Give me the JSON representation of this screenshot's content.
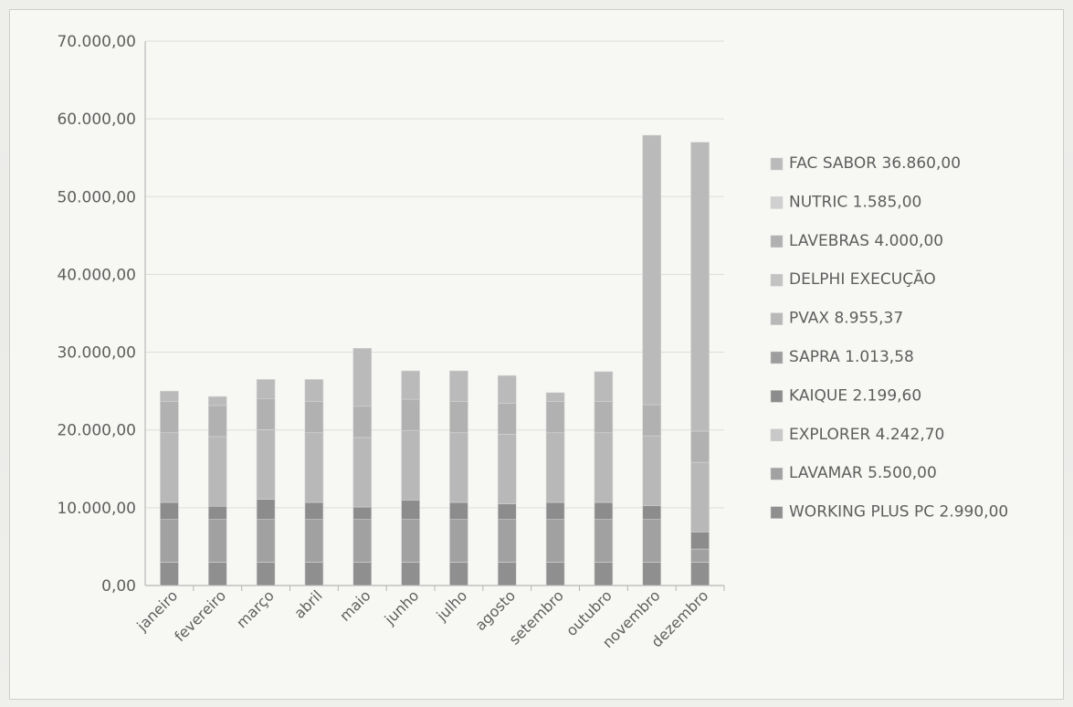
{
  "chart_data": {
    "type": "bar",
    "stacked": true,
    "title": "",
    "xlabel": "",
    "ylabel": "",
    "ylim": [
      0,
      70000
    ],
    "grid": true,
    "legend_position": "right",
    "categories": [
      "janeiro",
      "fevereiro",
      "março",
      "abril",
      "maio",
      "junho",
      "julho",
      "agosto",
      "setembro",
      "outubro",
      "novembro",
      "dezembro"
    ],
    "y_tick_labels": [
      "0,00",
      "10.000,00",
      "20.000,00",
      "30.000,00",
      "40.000,00",
      "50.000,00",
      "60.000,00",
      "70.000,00"
    ],
    "series": [
      {
        "name": "WORKING PLUS PC 2.990,00",
        "color": "#8f8f8f",
        "values": [
          2990,
          2990,
          2990,
          2990,
          2990,
          2990,
          2990,
          2990,
          2990,
          2990,
          2990,
          2990
        ]
      },
      {
        "name": "LAVAMAR 5.500,00",
        "color": "#a1a1a1",
        "values": [
          5500,
          5500,
          5500,
          5500,
          5500,
          5500,
          5500,
          5500,
          5500,
          5500,
          5500,
          1700
        ]
      },
      {
        "name": "EXPLORER 4.242,70",
        "color": "#c8c8c8",
        "values": [
          0,
          0,
          0,
          0,
          0,
          0,
          0,
          0,
          0,
          0,
          0,
          0
        ]
      },
      {
        "name": "KAIQUE 2.199,60",
        "color": "#8c8c8c",
        "values": [
          2200,
          1700,
          2600,
          2200,
          1600,
          2500,
          2200,
          2000,
          2200,
          2200,
          1800,
          2200
        ]
      },
      {
        "name": "SAPRA 1.013,58",
        "color": "#9d9d9d",
        "values": [
          0,
          0,
          0,
          0,
          0,
          0,
          0,
          0,
          0,
          0,
          0,
          0
        ]
      },
      {
        "name": "PVAX 8.955,37",
        "color": "#b8b8b8",
        "values": [
          8955.37,
          8955.37,
          8955.37,
          8955.37,
          8955.37,
          8955.37,
          8955.37,
          8955.37,
          8955.37,
          8955.37,
          8955.37,
          8955.37
        ]
      },
      {
        "name": "DELPHI EXECUÇÃO",
        "color": "#c3c3c3",
        "values": [
          0,
          0,
          0,
          0,
          0,
          0,
          0,
          0,
          0,
          0,
          0,
          0
        ]
      },
      {
        "name": "LAVEBRAS 4.000,00",
        "color": "#b1b1b1",
        "values": [
          4000,
          4000,
          4000,
          4000,
          4000,
          4000,
          4000,
          4000,
          4000,
          4000,
          4000,
          4000
        ]
      },
      {
        "name": "NUTRIC 1.585,00",
        "color": "#d0d0d0",
        "values": [
          0,
          0,
          0,
          0,
          0,
          0,
          0,
          0,
          0,
          0,
          0,
          0
        ]
      },
      {
        "name": "FAC SABOR 36.860,00",
        "color": "#bababa",
        "values": [
          1354.63,
          1154.63,
          2454.63,
          2854.63,
          7454.63,
          3654.63,
          3954.63,
          3554.63,
          1154.63,
          3854.63,
          34654.63,
          37154.63
        ]
      }
    ]
  }
}
